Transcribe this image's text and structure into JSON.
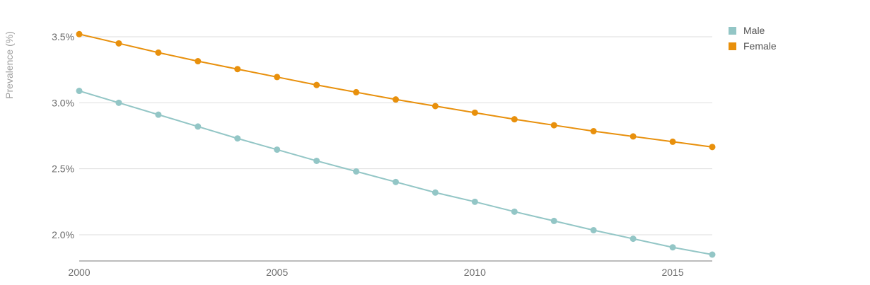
{
  "chart_data": {
    "type": "line",
    "title": "",
    "xlabel": "",
    "ylabel": "Prevalence (%)",
    "x": [
      2000,
      2001,
      2002,
      2003,
      2004,
      2005,
      2006,
      2007,
      2008,
      2009,
      2010,
      2011,
      2012,
      2013,
      2014,
      2015,
      2016
    ],
    "xlim": [
      2000,
      2016
    ],
    "ylim": [
      1.8,
      3.55
    ],
    "x_ticks": [
      {
        "value": 2000,
        "label": "2000"
      },
      {
        "value": 2005,
        "label": "2005"
      },
      {
        "value": 2010,
        "label": "2010"
      },
      {
        "value": 2015,
        "label": "2015"
      }
    ],
    "y_ticks": [
      {
        "value": 2.0,
        "label": "2.0%"
      },
      {
        "value": 2.5,
        "label": "2.5%"
      },
      {
        "value": 3.0,
        "label": "3.0%"
      },
      {
        "value": 3.5,
        "label": "3.5%"
      }
    ],
    "grid": true,
    "legend_position": "top-right",
    "series": [
      {
        "name": "Male",
        "color": "#93c6c6",
        "values": [
          3.09,
          3.0,
          2.91,
          2.82,
          2.73,
          2.645,
          2.56,
          2.48,
          2.4,
          2.32,
          2.25,
          2.175,
          2.105,
          2.035,
          1.97,
          1.905,
          1.85
        ]
      },
      {
        "name": "Female",
        "color": "#e8900c",
        "values": [
          3.52,
          3.45,
          3.38,
          3.315,
          3.255,
          3.195,
          3.135,
          3.08,
          3.025,
          2.975,
          2.925,
          2.875,
          2.83,
          2.785,
          2.745,
          2.705,
          2.665
        ]
      }
    ]
  }
}
